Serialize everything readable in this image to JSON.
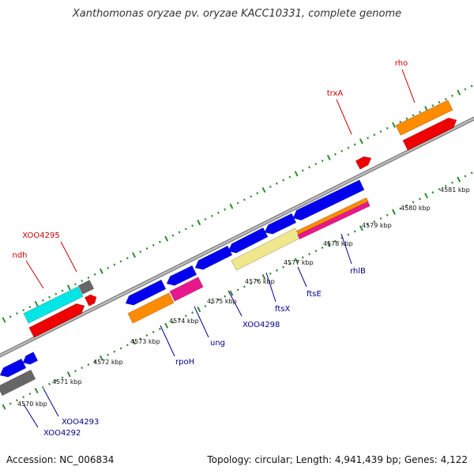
{
  "title": "Xanthomonas oryzae pv. oryzae KACC10331, complete genome",
  "accession_text": "Accession: NC_006834",
  "summary_text": "Topology: circular; Length: 4,941,439 bp; Genes: 4,122",
  "colors": {
    "backbone": "#8c8c8c",
    "tick": "#2e8b2e",
    "label_red": "#cc0000",
    "label_blue": "#00008b",
    "scale_text": "#111111",
    "blue": "#0000ee",
    "red": "#ee0000",
    "orange": "#ff8c00",
    "cyan": "#00e5e5",
    "gray": "#666666",
    "magenta": "#e8188c",
    "khaki": "#f0e68c"
  },
  "scale_labels": [
    "4570 kbp",
    "4571 kbp",
    "4572 kbp",
    "4573 kbp",
    "4574 kbp",
    "4575 kbp",
    "4576 kbp",
    "4577 kbp",
    "4578 kbp",
    "4579 kbp",
    "4580 kbp",
    "4581 kbp"
  ],
  "gene_labels_forward": [
    "XOO4295",
    "ndh",
    "trxA",
    "rho"
  ],
  "gene_labels_reverse": [
    "XOO4292",
    "XOO4293",
    "rpoH",
    "ung",
    "XOO4298",
    "ftsX",
    "ftsE",
    "rhlB"
  ]
}
